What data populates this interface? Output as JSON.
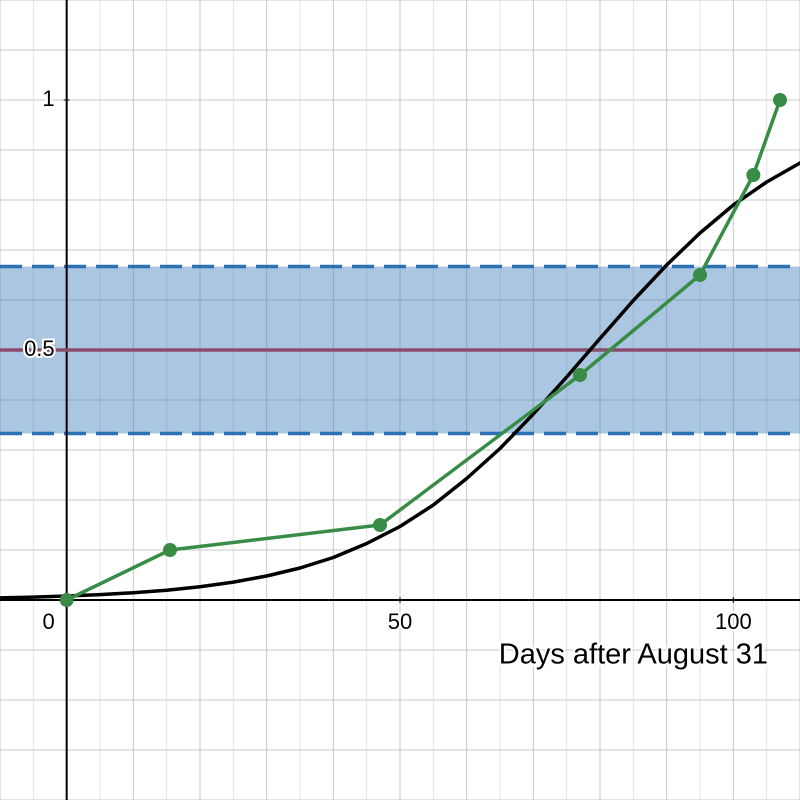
{
  "chart_data": {
    "type": "line",
    "xlabel": "Days after August 31",
    "xlim": [
      -10,
      110
    ],
    "ylim": [
      -0.4,
      1.2
    ],
    "xticks": [
      0,
      50,
      100
    ],
    "yticks": [
      0.5,
      1
    ],
    "grid": {
      "x_step": 5,
      "y_step": 0.1
    },
    "bands": [
      {
        "ylim": [
          0.333,
          0.667
        ],
        "color": "#2d70b3"
      }
    ],
    "hlines": [
      {
        "value": 0.5,
        "color": "#8a4c6e"
      }
    ],
    "series": [
      {
        "color": "#000000",
        "markers": false,
        "x": [
          -10,
          -5,
          0,
          5,
          10,
          15,
          20,
          25,
          30,
          35,
          40,
          45,
          50,
          55,
          60,
          65,
          70,
          75,
          80,
          85,
          90,
          95,
          100,
          105,
          110
        ],
        "values": [
          0.0043,
          0.0058,
          0.0079,
          0.0107,
          0.0145,
          0.0196,
          0.0265,
          0.0357,
          0.048,
          0.064,
          0.085,
          0.113,
          0.147,
          0.19,
          0.243,
          0.303,
          0.372,
          0.446,
          0.523,
          0.599,
          0.67,
          0.734,
          0.79,
          0.836,
          0.874
        ]
      },
      {
        "color": "#388c46",
        "markers": true,
        "x": [
          0,
          15.5,
          47,
          77,
          95,
          103,
          107
        ],
        "values": [
          0,
          0.1,
          0.15,
          0.45,
          0.65,
          0.85,
          1
        ]
      }
    ]
  }
}
